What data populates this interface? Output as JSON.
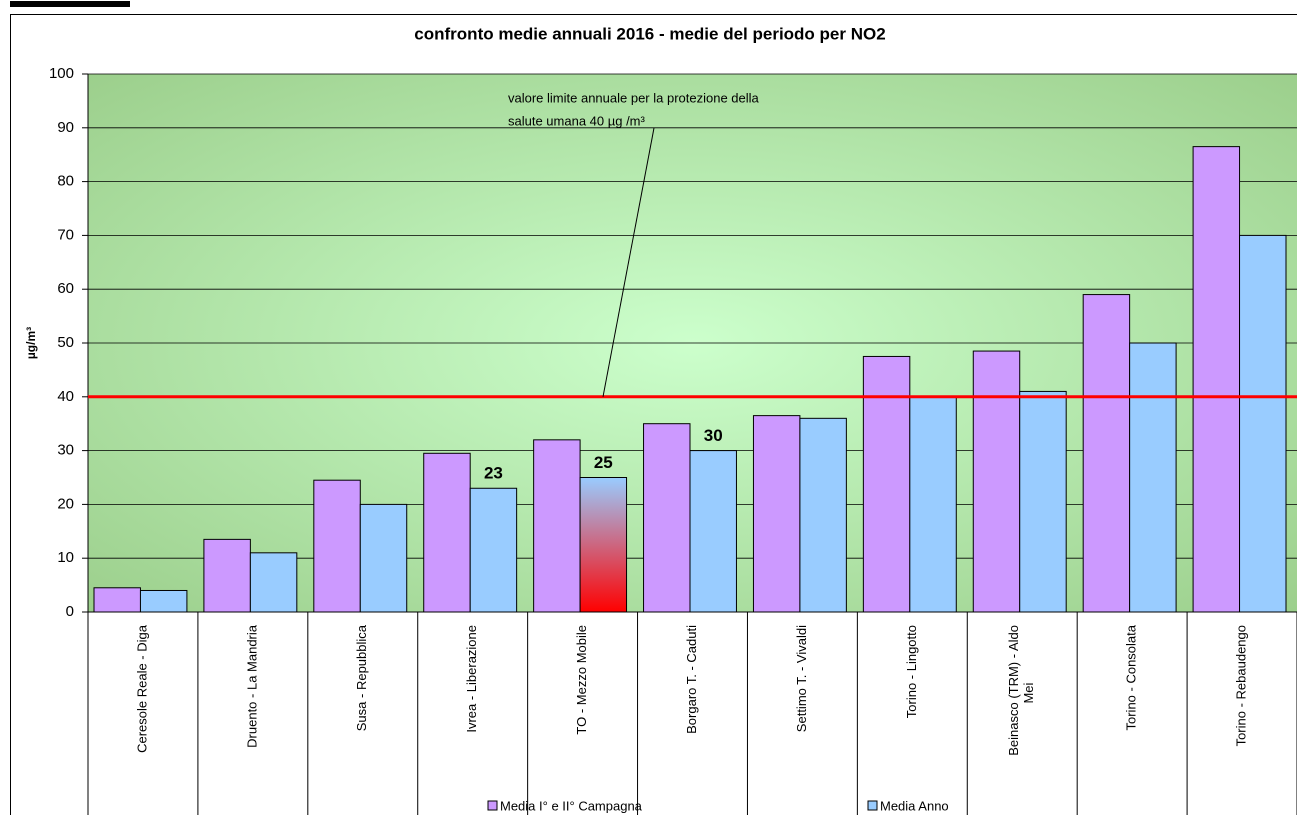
{
  "chart_data": {
    "type": "bar",
    "title": "confronto medie annuali 2016 - medie del periodo per NO2",
    "y_label": "µg/m³",
    "categories": [
      "Ceresole Reale - Diga",
      "Druento - La Mandria",
      "Susa - Repubblica",
      "Ivrea - Liberazione",
      "TO - Mezzo Mobile",
      "Borgaro T. - Caduti",
      "Settimo T. - Vivaldi",
      "Torino - Lingotto",
      "Beinasco (TRM) - Aldo Mei",
      "Torino - Consolata",
      "Torino - Rebaudengo"
    ],
    "series": [
      {
        "name": "Media I° e II° Campagna",
        "color": "#cc99ff",
        "values": [
          4.5,
          13.5,
          24.5,
          29.5,
          32,
          35,
          36.5,
          47.5,
          48.5,
          59,
          86.5
        ]
      },
      {
        "name": "Media Anno",
        "color": "#99ccff",
        "values": [
          4,
          11,
          20,
          23,
          25,
          30,
          36,
          40,
          41,
          50,
          70
        ],
        "labeled": [
          "Ivrea - Liberazione",
          "TO - Mezzo Mobile",
          "Borgaro T. - Caduti"
        ],
        "highlight": {
          "category": "TO - Mezzo Mobile",
          "colors": [
            "#99ccff",
            "#ff0000"
          ]
        }
      }
    ],
    "limit": {
      "value": 40,
      "color": "#ff0000",
      "annotation": [
        "valore limite annuale per la protezione della",
        "salute umana 40 µg /m³"
      ]
    },
    "ylim": [
      0,
      100
    ],
    "yticks": [
      0,
      10,
      20,
      30,
      40,
      50,
      60,
      70,
      80,
      90,
      100
    ],
    "grid": true,
    "legend": "bottom"
  }
}
